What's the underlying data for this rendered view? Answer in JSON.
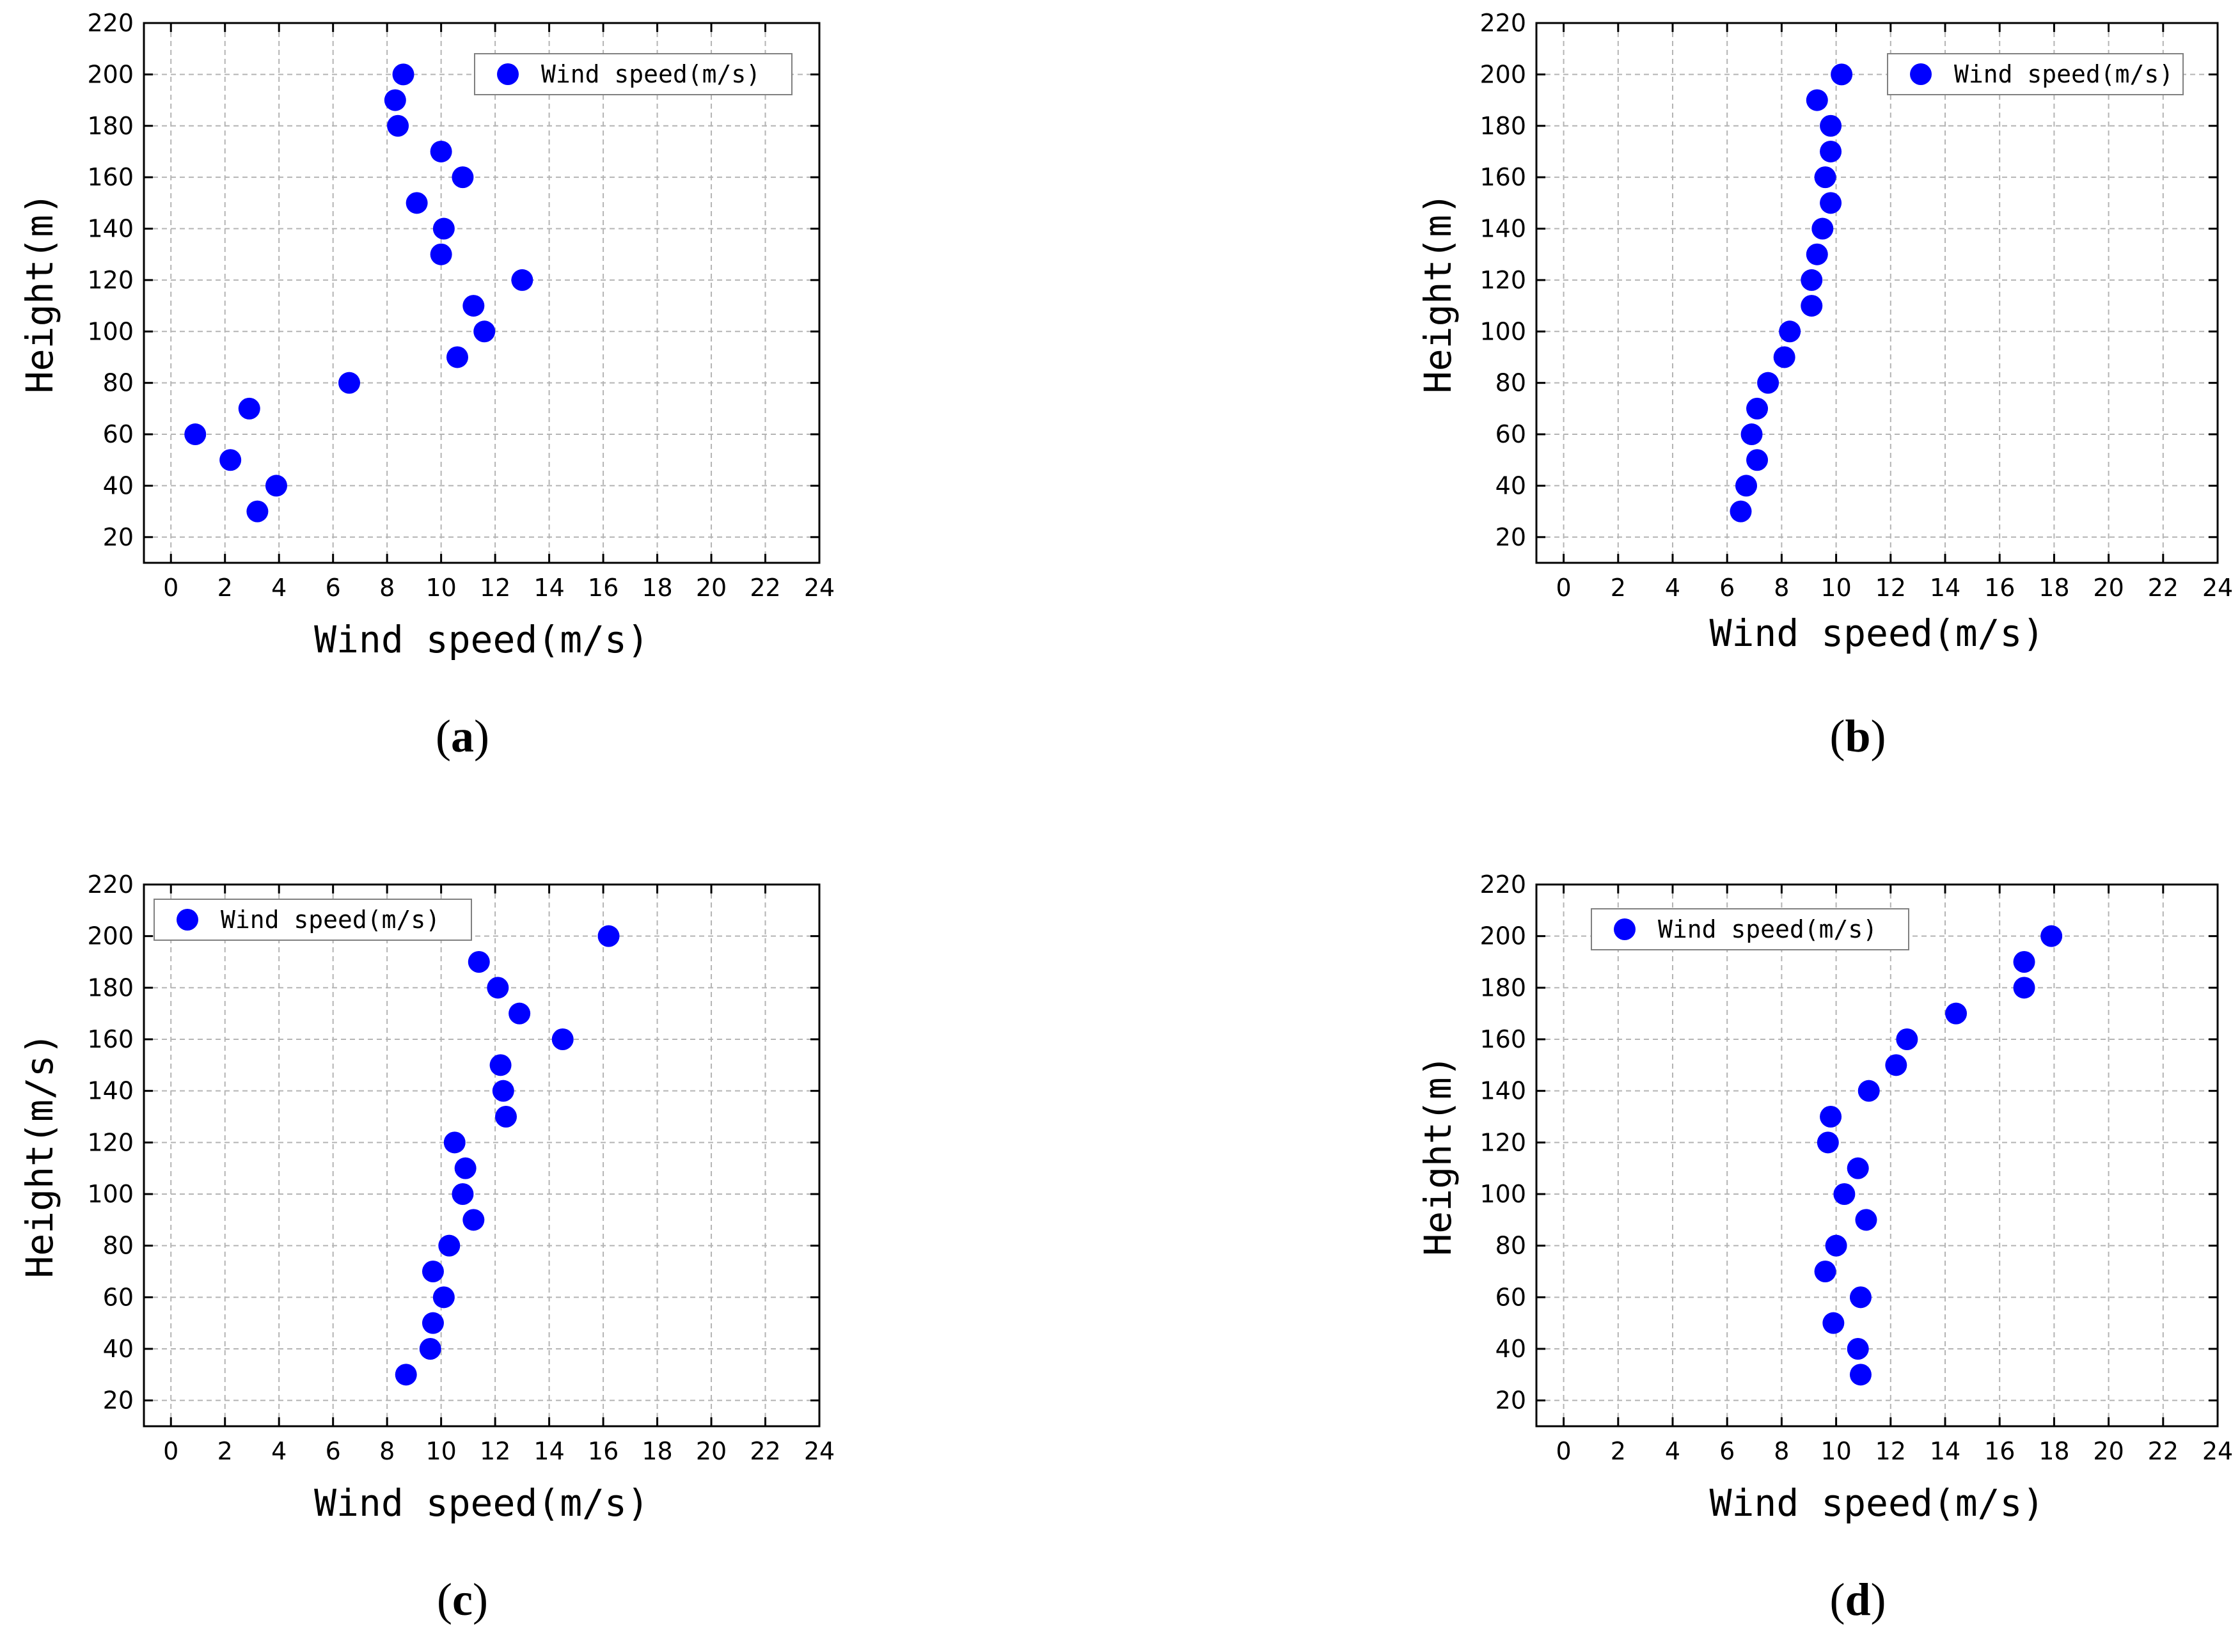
{
  "figure": {
    "colors": {
      "marker": "#0000ff",
      "grid": "#b4b4b4",
      "axis": "#000000"
    }
  },
  "chart_data": [
    {
      "type": "scatter",
      "panel_label": "a",
      "xlabel": "Wind speed(m/s)",
      "ylabel": "Height(m)",
      "xlim": [
        -1,
        24
      ],
      "ylim": [
        10,
        220
      ],
      "xticks": [
        0,
        2,
        4,
        6,
        8,
        10,
        12,
        14,
        16,
        18,
        20,
        22,
        24
      ],
      "yticks": [
        20,
        40,
        60,
        80,
        100,
        120,
        140,
        160,
        180,
        200,
        220
      ],
      "grid": true,
      "legend": {
        "label": "Wind speed(m/s)",
        "placement": "top-right"
      },
      "series": [
        {
          "name": "Wind speed(m/s)",
          "x": [
            3.2,
            3.9,
            2.2,
            0.9,
            2.9,
            6.6,
            10.6,
            11.6,
            11.2,
            13.0,
            10.0,
            10.1,
            9.1,
            10.8,
            10.0,
            8.4,
            8.3,
            8.6
          ],
          "y": [
            30,
            40,
            50,
            60,
            70,
            80,
            90,
            100,
            110,
            120,
            130,
            140,
            150,
            160,
            170,
            180,
            190,
            200
          ]
        }
      ]
    },
    {
      "type": "scatter",
      "panel_label": "b",
      "xlabel": "Wind speed(m/s)",
      "ylabel": "Height(m)",
      "xlim": [
        -1,
        24
      ],
      "ylim": [
        10,
        220
      ],
      "xticks": [
        0,
        2,
        4,
        6,
        8,
        10,
        12,
        14,
        16,
        18,
        20,
        22,
        24
      ],
      "yticks": [
        20,
        40,
        60,
        80,
        100,
        120,
        140,
        160,
        180,
        200,
        220
      ],
      "grid": true,
      "legend": {
        "label": "Wind speed(m/s)",
        "placement": "top-right"
      },
      "series": [
        {
          "name": "Wind speed(m/s)",
          "x": [
            6.5,
            6.7,
            7.1,
            6.9,
            7.1,
            7.5,
            8.1,
            8.3,
            9.1,
            9.1,
            9.3,
            9.5,
            9.8,
            9.6,
            9.8,
            9.8,
            9.3,
            10.2
          ],
          "y": [
            30,
            40,
            50,
            60,
            70,
            80,
            90,
            100,
            110,
            120,
            130,
            140,
            150,
            160,
            170,
            180,
            190,
            200
          ]
        }
      ]
    },
    {
      "type": "scatter",
      "panel_label": "c",
      "xlabel": "Wind speed(m/s)",
      "ylabel": "Height(m/s)",
      "xlim": [
        -1,
        24
      ],
      "ylim": [
        10,
        220
      ],
      "xticks": [
        0,
        2,
        4,
        6,
        8,
        10,
        12,
        14,
        16,
        18,
        20,
        22,
        24
      ],
      "yticks": [
        20,
        40,
        60,
        80,
        100,
        120,
        140,
        160,
        180,
        200,
        220
      ],
      "grid": true,
      "legend": {
        "label": "Wind speed(m/s)",
        "placement": "top-left"
      },
      "series": [
        {
          "name": "Wind speed(m/s)",
          "x": [
            8.7,
            9.6,
            9.7,
            10.1,
            9.7,
            10.3,
            11.2,
            10.8,
            10.9,
            10.5,
            12.4,
            12.3,
            12.2,
            14.5,
            12.9,
            12.1,
            11.4,
            16.2
          ],
          "y": [
            30,
            40,
            50,
            60,
            70,
            80,
            90,
            100,
            110,
            120,
            130,
            140,
            150,
            160,
            170,
            180,
            190,
            200
          ]
        }
      ]
    },
    {
      "type": "scatter",
      "panel_label": "d",
      "xlabel": "Wind speed(m/s)",
      "ylabel": "Height(m)",
      "xlim": [
        -1,
        24
      ],
      "ylim": [
        10,
        220
      ],
      "xticks": [
        0,
        2,
        4,
        6,
        8,
        10,
        12,
        14,
        16,
        18,
        20,
        22,
        24
      ],
      "yticks": [
        20,
        40,
        60,
        80,
        100,
        120,
        140,
        160,
        180,
        200,
        220
      ],
      "grid": true,
      "legend": {
        "label": "Wind speed(m/s)",
        "placement": "top-left"
      },
      "series": [
        {
          "name": "Wind speed(m/s)",
          "x": [
            10.9,
            10.8,
            9.9,
            10.9,
            9.6,
            10.0,
            11.1,
            10.3,
            10.8,
            9.7,
            9.8,
            11.2,
            12.2,
            12.6,
            14.4,
            16.9,
            16.9,
            17.9
          ],
          "y": [
            30,
            40,
            50,
            60,
            70,
            80,
            90,
            100,
            110,
            120,
            130,
            140,
            150,
            160,
            170,
            180,
            190,
            200
          ]
        }
      ]
    }
  ]
}
